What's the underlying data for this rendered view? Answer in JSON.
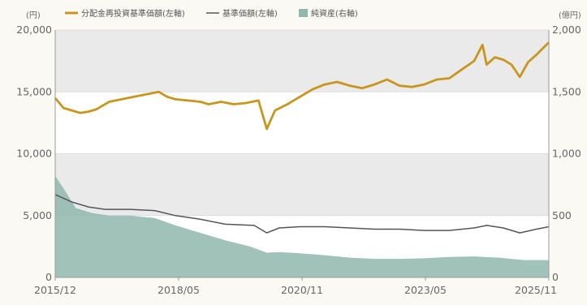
{
  "chart_data": {
    "type": "line",
    "y_left_unit": "(円)",
    "y_right_unit": "(億円)",
    "y_left_ticks": [
      "20,000",
      "15,000",
      "10,000",
      "5,000",
      "0"
    ],
    "y_right_ticks": [
      "2,000",
      "1,500",
      "1,000",
      "500",
      "0"
    ],
    "y_left_range": [
      0,
      20000
    ],
    "y_right_range": [
      0,
      2000
    ],
    "x_ticks": [
      "2015/12",
      "2018/05",
      "2020/11",
      "2023/05",
      "2025/11"
    ],
    "x_range": [
      "2015-12",
      "2025-11"
    ],
    "legend": [
      {
        "key": "reinvested",
        "label": "分配金再投資基準価額(左軸)",
        "color": "#c8961e"
      },
      {
        "key": "nav",
        "label": "基準価額(左軸)",
        "color": "#555555"
      },
      {
        "key": "assets",
        "label": "純資産(右軸)",
        "color": "#8fb7ad"
      }
    ],
    "series": [
      {
        "name": "分配金再投資基準価額(左軸)",
        "axis": "left",
        "type": "line",
        "color": "#c8961e",
        "points": [
          [
            "2015-12",
            14500
          ],
          [
            "2016-02",
            13700
          ],
          [
            "2016-04",
            13500
          ],
          [
            "2016-06",
            13300
          ],
          [
            "2016-08",
            13400
          ],
          [
            "2016-10",
            13600
          ],
          [
            "2017-01",
            14200
          ],
          [
            "2017-04",
            14400
          ],
          [
            "2017-07",
            14600
          ],
          [
            "2017-10",
            14800
          ],
          [
            "2018-01",
            15000
          ],
          [
            "2018-03",
            14600
          ],
          [
            "2018-05",
            14400
          ],
          [
            "2018-08",
            14300
          ],
          [
            "2018-11",
            14200
          ],
          [
            "2019-01",
            14000
          ],
          [
            "2019-04",
            14200
          ],
          [
            "2019-07",
            14000
          ],
          [
            "2019-10",
            14100
          ],
          [
            "2020-01",
            14300
          ],
          [
            "2020-03",
            12000
          ],
          [
            "2020-05",
            13500
          ],
          [
            "2020-08",
            14000
          ],
          [
            "2020-11",
            14600
          ],
          [
            "2021-02",
            15200
          ],
          [
            "2021-05",
            15600
          ],
          [
            "2021-08",
            15800
          ],
          [
            "2021-11",
            15500
          ],
          [
            "2022-02",
            15300
          ],
          [
            "2022-05",
            15600
          ],
          [
            "2022-08",
            16000
          ],
          [
            "2022-11",
            15500
          ],
          [
            "2023-02",
            15400
          ],
          [
            "2023-05",
            15600
          ],
          [
            "2023-08",
            16000
          ],
          [
            "2023-11",
            16100
          ],
          [
            "2024-02",
            16800
          ],
          [
            "2024-05",
            17500
          ],
          [
            "2024-07",
            18800
          ],
          [
            "2024-08",
            17200
          ],
          [
            "2024-10",
            17800
          ],
          [
            "2024-12",
            17600
          ],
          [
            "2025-02",
            17200
          ],
          [
            "2025-04",
            16200
          ],
          [
            "2025-06",
            17400
          ],
          [
            "2025-08",
            18000
          ],
          [
            "2025-11",
            19000
          ]
        ]
      },
      {
        "name": "基準価額(左軸)",
        "axis": "left",
        "type": "line",
        "color": "#555555",
        "points": [
          [
            "2015-12",
            6700
          ],
          [
            "2016-04",
            6100
          ],
          [
            "2016-08",
            5700
          ],
          [
            "2016-12",
            5500
          ],
          [
            "2017-06",
            5500
          ],
          [
            "2017-12",
            5400
          ],
          [
            "2018-05",
            5000
          ],
          [
            "2018-11",
            4700
          ],
          [
            "2019-05",
            4300
          ],
          [
            "2019-12",
            4200
          ],
          [
            "2020-03",
            3600
          ],
          [
            "2020-06",
            4000
          ],
          [
            "2020-11",
            4100
          ],
          [
            "2021-05",
            4100
          ],
          [
            "2021-11",
            4000
          ],
          [
            "2022-05",
            3900
          ],
          [
            "2022-11",
            3900
          ],
          [
            "2023-05",
            3800
          ],
          [
            "2023-11",
            3800
          ],
          [
            "2024-05",
            4000
          ],
          [
            "2024-08",
            4200
          ],
          [
            "2024-12",
            4000
          ],
          [
            "2025-04",
            3600
          ],
          [
            "2025-08",
            3900
          ],
          [
            "2025-11",
            4100
          ]
        ]
      },
      {
        "name": "純資産(右軸)",
        "axis": "right",
        "type": "area",
        "color": "#8fb7ad",
        "points": [
          [
            "2015-12",
            820
          ],
          [
            "2016-02",
            720
          ],
          [
            "2016-05",
            560
          ],
          [
            "2016-09",
            520
          ],
          [
            "2017-01",
            500
          ],
          [
            "2017-06",
            500
          ],
          [
            "2017-12",
            480
          ],
          [
            "2018-05",
            420
          ],
          [
            "2018-11",
            360
          ],
          [
            "2019-05",
            300
          ],
          [
            "2019-11",
            250
          ],
          [
            "2020-03",
            200
          ],
          [
            "2020-06",
            205
          ],
          [
            "2020-11",
            195
          ],
          [
            "2021-05",
            180
          ],
          [
            "2021-11",
            160
          ],
          [
            "2022-05",
            150
          ],
          [
            "2022-11",
            150
          ],
          [
            "2023-05",
            155
          ],
          [
            "2023-11",
            165
          ],
          [
            "2024-05",
            170
          ],
          [
            "2024-11",
            160
          ],
          [
            "2025-05",
            140
          ],
          [
            "2025-11",
            140
          ]
        ]
      }
    ]
  }
}
